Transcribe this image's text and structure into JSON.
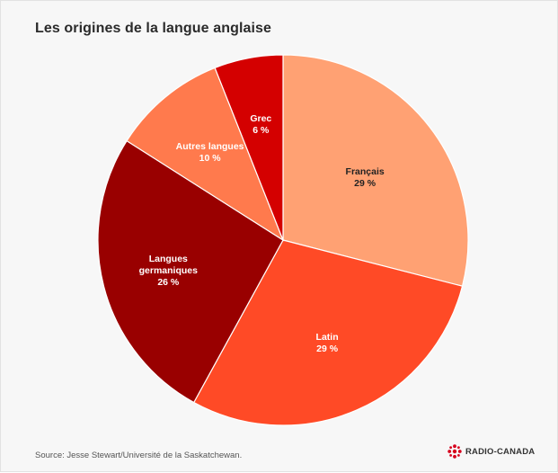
{
  "title": "Les origines de la langue anglaise",
  "source": "Source: Jesse Stewart/Université de la Saskatchewan.",
  "brand": {
    "name": "RADIO-CANADA",
    "logo_icon": "radio-canada-gem-icon",
    "logo_color": "#d6001c"
  },
  "chart_data": {
    "type": "pie",
    "slices": [
      {
        "label": "Français",
        "value": 29,
        "value_label": "29 %",
        "color": "#ffa173",
        "label_color": "#222222"
      },
      {
        "label": "Latin",
        "value": 29,
        "value_label": "29 %",
        "color": "#ff4a26",
        "label_color": "#ffffff"
      },
      {
        "label": "Langues germaniques",
        "label_lines": [
          "Langues",
          "germaniques"
        ],
        "value": 26,
        "value_label": "26 %",
        "color": "#990000",
        "label_color": "#ffffff"
      },
      {
        "label": "Autres langues",
        "value": 10,
        "value_label": "10 %",
        "color": "#ff7a4d",
        "label_color": "#ffffff"
      },
      {
        "label": "Grec",
        "value": 6,
        "value_label": "6 %",
        "color": "#d40000",
        "label_color": "#ffffff"
      }
    ]
  }
}
